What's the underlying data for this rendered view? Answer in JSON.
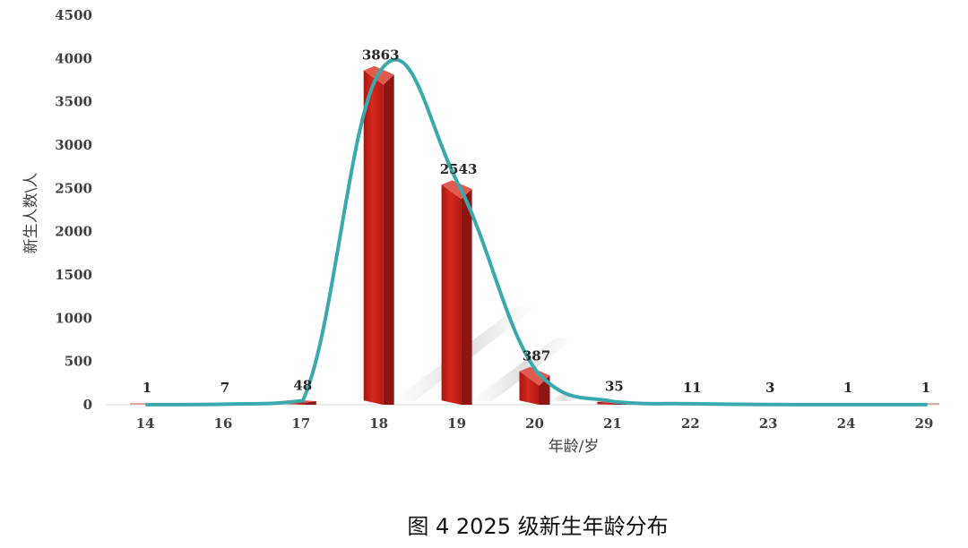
{
  "chart_data": {
    "type": "bar",
    "title": "",
    "xlabel": "年龄/岁",
    "ylabel": "新生人数\\人",
    "categories": [
      "14",
      "16",
      "17",
      "18",
      "19",
      "20",
      "21",
      "22",
      "23",
      "24",
      "29"
    ],
    "values": [
      1,
      7,
      48,
      3863,
      2543,
      387,
      35,
      11,
      3,
      1,
      1
    ],
    "ylim": [
      0,
      4500
    ],
    "yticks": [
      0,
      500,
      1000,
      1500,
      2000,
      2500,
      3000,
      3500,
      4000,
      4500
    ],
    "trendline": "smooth curve",
    "colors": {
      "bar": "#c0201e",
      "bar_side": "#8e1512",
      "bar_top": "#e15a4e",
      "curve": "#3aa9ad"
    },
    "grid": false,
    "legend": "none"
  },
  "caption": "图  4 2025 级新生年龄分布"
}
